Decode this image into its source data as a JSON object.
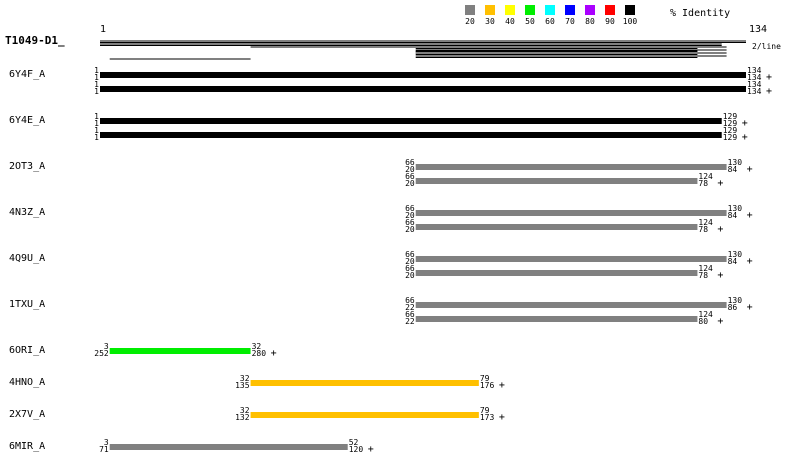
{
  "query": {
    "name": "T1049-D1_",
    "start_label": "1",
    "end_label": "134",
    "length": 134,
    "scale_note": "2/line"
  },
  "legend": {
    "title": "% Identity",
    "items": [
      {
        "label": "20",
        "color": "#808080"
      },
      {
        "label": "30",
        "color": "#ffc000"
      },
      {
        "label": "40",
        "color": "#ffff00"
      },
      {
        "label": "50",
        "color": "#00ee00"
      },
      {
        "label": "60",
        "color": "#00ffff"
      },
      {
        "label": "70",
        "color": "#0000ff"
      },
      {
        "label": "80",
        "color": "#aa00ff"
      },
      {
        "label": "90",
        "color": "#ff0000"
      },
      {
        "label": "100",
        "color": "#000000"
      }
    ]
  },
  "hits": [
    {
      "name": "6Y4F_A",
      "rows": [
        {
          "qs": 1,
          "qe": 134,
          "color": "#000000",
          "ql": "1",
          "qr": "134",
          "sl": "1",
          "sr": "134",
          "plus": "+"
        },
        {
          "qs": 1,
          "qe": 134,
          "color": "#000000",
          "ql": "1",
          "qr": "134",
          "sl": "1",
          "sr": "134",
          "plus": "+"
        }
      ]
    },
    {
      "name": "6Y4E_A",
      "rows": [
        {
          "qs": 1,
          "qe": 129,
          "color": "#000000",
          "ql": "1",
          "qr": "129",
          "sl": "1",
          "sr": "129",
          "plus": "+"
        },
        {
          "qs": 1,
          "qe": 129,
          "color": "#000000",
          "ql": "1",
          "qr": "129",
          "sl": "1",
          "sr": "129",
          "plus": "+"
        }
      ]
    },
    {
      "name": "2OT3_A",
      "rows": [
        {
          "qs": 66,
          "qe": 130,
          "color": "#808080",
          "ql": "66",
          "qr": "130",
          "sl": "20",
          "sr": "84",
          "plus": "+"
        },
        {
          "qs": 66,
          "qe": 124,
          "color": "#808080",
          "ql": "66",
          "qr": "124",
          "sl": "20",
          "sr": "78",
          "plus": "+"
        }
      ]
    },
    {
      "name": "4N3Z_A",
      "rows": [
        {
          "qs": 66,
          "qe": 130,
          "color": "#808080",
          "ql": "66",
          "qr": "130",
          "sl": "20",
          "sr": "84",
          "plus": "+"
        },
        {
          "qs": 66,
          "qe": 124,
          "color": "#808080",
          "ql": "66",
          "qr": "124",
          "sl": "20",
          "sr": "78",
          "plus": "+"
        }
      ]
    },
    {
      "name": "4Q9U_A",
      "rows": [
        {
          "qs": 66,
          "qe": 130,
          "color": "#808080",
          "ql": "66",
          "qr": "130",
          "sl": "20",
          "sr": "84",
          "plus": "+"
        },
        {
          "qs": 66,
          "qe": 124,
          "color": "#808080",
          "ql": "66",
          "qr": "124",
          "sl": "20",
          "sr": "78",
          "plus": "+"
        }
      ]
    },
    {
      "name": "1TXU_A",
      "rows": [
        {
          "qs": 66,
          "qe": 130,
          "color": "#808080",
          "ql": "66",
          "qr": "130",
          "sl": "22",
          "sr": "86",
          "plus": "+"
        },
        {
          "qs": 66,
          "qe": 124,
          "color": "#808080",
          "ql": "66",
          "qr": "124",
          "sl": "22",
          "sr": "80",
          "plus": "+"
        }
      ]
    },
    {
      "name": "6ORI_A",
      "rows": [
        {
          "qs": 3,
          "qe": 32,
          "color": "#00ee00",
          "ql": "3",
          "qr": "32",
          "sl": "252",
          "sr": "280",
          "plus": "+"
        }
      ]
    },
    {
      "name": "4HNO_A",
      "rows": [
        {
          "qs": 32,
          "qe": 79,
          "color": "#ffc000",
          "ql": "32",
          "qr": "79",
          "sl": "135",
          "sr": "176",
          "plus": "+"
        }
      ]
    },
    {
      "name": "2X7V_A",
      "rows": [
        {
          "qs": 32,
          "qe": 79,
          "color": "#ffc000",
          "ql": "32",
          "qr": "79",
          "sl": "132",
          "sr": "173",
          "plus": "+"
        }
      ]
    },
    {
      "name": "6MIR_A",
      "rows": [
        {
          "qs": 3,
          "qe": 52,
          "color": "#808080",
          "ql": "3",
          "qr": "52",
          "sl": "71",
          "sr": "120",
          "plus": "+"
        }
      ]
    }
  ]
}
